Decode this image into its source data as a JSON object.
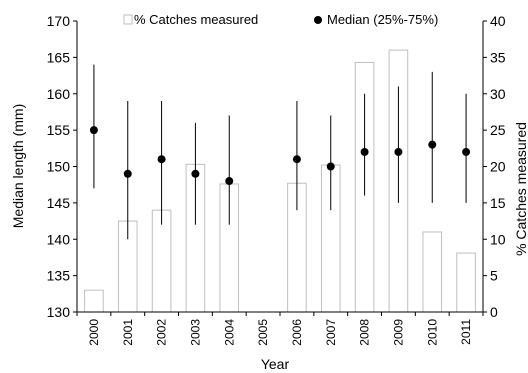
{
  "chart_data": {
    "type": "bar",
    "categories": [
      "2000",
      "2001",
      "2002",
      "2003",
      "2004",
      "2005",
      "2006",
      "2007",
      "2008",
      "2009",
      "2010",
      "2011"
    ],
    "xlabel": "Year",
    "ylabel_left": "Median length (mm)",
    "ylabel_right": "% Catches measured",
    "ylim_left": [
      130,
      170
    ],
    "yticks_left": [
      130,
      135,
      140,
      145,
      150,
      155,
      160,
      165,
      170
    ],
    "ylim_right": [
      0,
      40
    ],
    "yticks_right": [
      0,
      5,
      10,
      15,
      20,
      25,
      30,
      35,
      40
    ],
    "legend": {
      "position": "top",
      "items": [
        "% Catches measured",
        "Median (25%-75%)"
      ]
    },
    "series": [
      {
        "name": "% Catches measured",
        "kind": "bar",
        "axis": "right",
        "values": [
          3,
          12.5,
          14,
          20.3,
          17.6,
          null,
          17.7,
          20.2,
          34.3,
          36,
          11,
          8.1
        ],
        "color": "#bfbfbf"
      },
      {
        "name": "Median (25%-75%)",
        "kind": "point-range",
        "axis": "left",
        "median": [
          155,
          149,
          151,
          149,
          148,
          null,
          151,
          150,
          152,
          152,
          153,
          152
        ],
        "q25": [
          147,
          140,
          142,
          142,
          142,
          null,
          144,
          144,
          146,
          145,
          145,
          145
        ],
        "q75": [
          164,
          159,
          159,
          156,
          157,
          null,
          159,
          157,
          160,
          161,
          163,
          160
        ],
        "color": "#000000"
      }
    ]
  }
}
